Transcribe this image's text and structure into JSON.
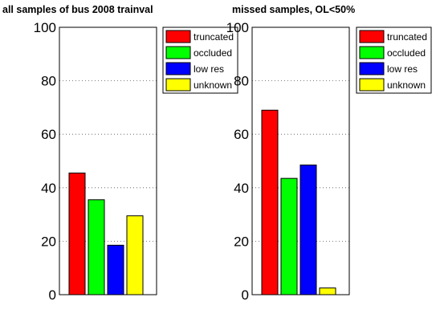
{
  "chart_data": [
    {
      "type": "bar",
      "title": "all samples of bus 2008 trainval",
      "categories": [
        "truncated",
        "occluded",
        "low res",
        "unknown"
      ],
      "values": [
        45.5,
        35.5,
        18.5,
        29.5
      ],
      "colors": [
        "#ff0000",
        "#00ff00",
        "#0000ff",
        "#ffff00"
      ],
      "ylim": [
        0,
        100
      ],
      "yticks": [
        0,
        20,
        40,
        60,
        80,
        100
      ],
      "grid": true,
      "legend": {
        "placement": "top-right",
        "entries": [
          "truncated",
          "occluded",
          "low res",
          "unknown"
        ]
      }
    },
    {
      "type": "bar",
      "title": "missed samples,  OL<50%",
      "categories": [
        "truncated",
        "occluded",
        "low res",
        "unknown"
      ],
      "values": [
        69,
        43.5,
        48.5,
        2.5
      ],
      "colors": [
        "#ff0000",
        "#00ff00",
        "#0000ff",
        "#ffff00"
      ],
      "ylim": [
        0,
        100
      ],
      "yticks": [
        0,
        20,
        40,
        60,
        80,
        100
      ],
      "grid": true,
      "legend": {
        "placement": "top-right",
        "entries": [
          "truncated",
          "occluded",
          "low res",
          "unknown"
        ]
      }
    }
  ]
}
